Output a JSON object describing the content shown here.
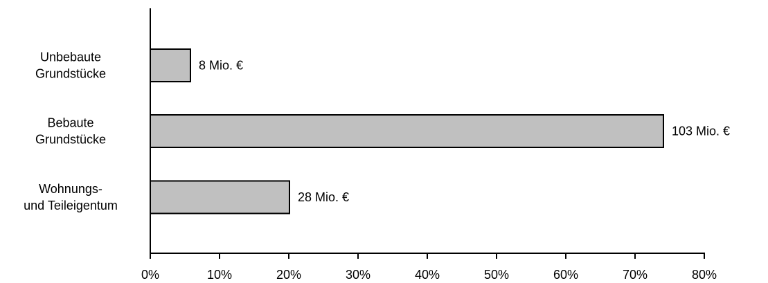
{
  "chart_data": {
    "type": "bar",
    "orientation": "horizontal",
    "title": "",
    "xlabel": "",
    "ylabel": "",
    "xlim": [
      0,
      80
    ],
    "x_ticks": [
      "0%",
      "10%",
      "20%",
      "30%",
      "40%",
      "50%",
      "60%",
      "70%",
      "80%"
    ],
    "x_tick_values": [
      0,
      10,
      20,
      30,
      40,
      50,
      60,
      70,
      80
    ],
    "grid": false,
    "categories": [
      [
        "Unbebaute",
        "Grundstücke"
      ],
      [
        "Bebaute",
        "Grundstücke"
      ],
      [
        "Wohnungs-",
        "und Teileigentum"
      ]
    ],
    "values": [
      5.8,
      74.1,
      20.1
    ],
    "data_labels": [
      "8 Mio. €",
      "103 Mio. €",
      "28 Mio. €"
    ],
    "colors": {
      "bar_fill": "#c0c0c0",
      "bar_stroke": "#000000",
      "axis": "#000000"
    }
  }
}
